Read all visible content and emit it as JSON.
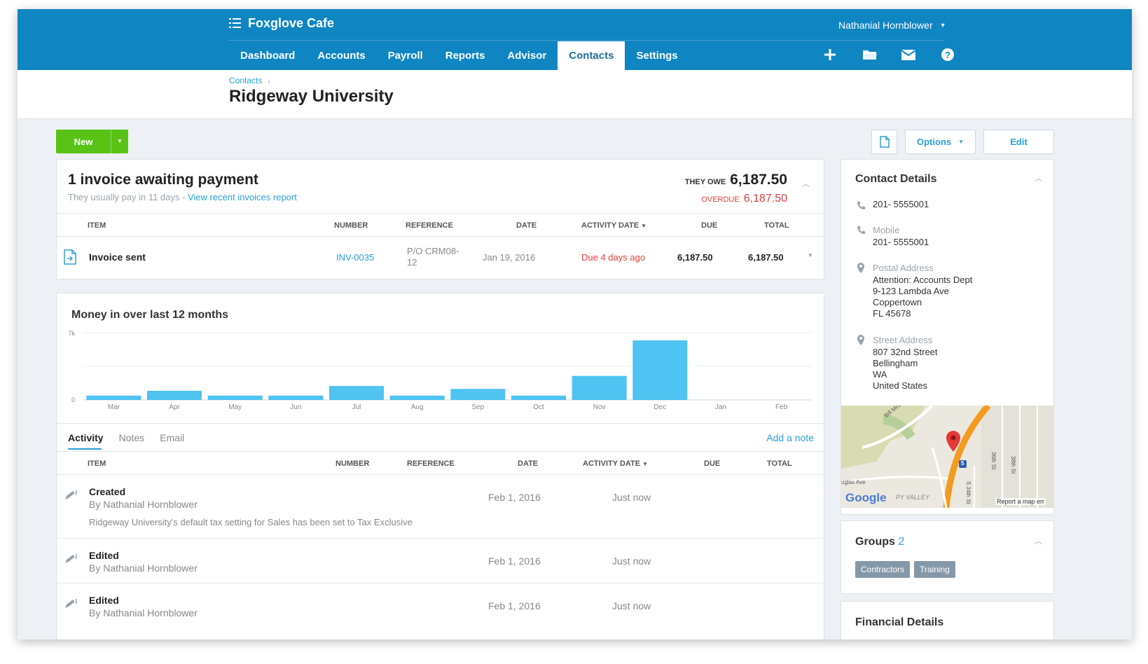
{
  "org_name": "Foxglove Cafe",
  "user_name": "Nathanial Hornblower",
  "nav": {
    "tabs": [
      "Dashboard",
      "Accounts",
      "Payroll",
      "Reports",
      "Advisor",
      "Contacts",
      "Settings"
    ],
    "active": "Contacts"
  },
  "icons": [
    "plus-icon",
    "folder-icon",
    "mail-icon",
    "help-icon"
  ],
  "breadcrumb": {
    "label": "Contacts",
    "separator": "›"
  },
  "page_title": "Ridgeway University",
  "toolbar": {
    "new_label": "New",
    "options_label": "Options",
    "edit_label": "Edit"
  },
  "invoice_panel": {
    "title": "1 invoice awaiting payment",
    "subtitle": "They usually pay in 11 days - ",
    "report_link": "View recent invoices report",
    "owe_label": "THEY OWE",
    "owe_value": "6,187.50",
    "overdue_label": "OVERDUE",
    "overdue_value": "6,187.50",
    "columns": [
      "ITEM",
      "NUMBER",
      "REFERENCE",
      "DATE",
      "ACTIVITY DATE",
      "DUE",
      "TOTAL"
    ],
    "row": {
      "item": "Invoice sent",
      "number": "INV-0035",
      "reference_line1": "P/O CRM08-",
      "reference_line2": "12",
      "date": "Jan 19, 2016",
      "activity_date": "Due 4 days ago",
      "due": "6,187.50",
      "total": "6,187.50"
    }
  },
  "chart_data": {
    "type": "bar",
    "title": "Money in over last 12 months",
    "categories": [
      "Mar",
      "Apr",
      "May",
      "Jun",
      "Jul",
      "Aug",
      "Sep",
      "Oct",
      "Nov",
      "Dec",
      "Jan",
      "Feb"
    ],
    "values": [
      450,
      950,
      450,
      450,
      1450,
      450,
      1150,
      450,
      2500,
      6200,
      0,
      0
    ],
    "y_ticks": [
      "7k",
      "0"
    ],
    "ylim": [
      0,
      7000
    ],
    "bar_color": "#4fc3f1",
    "grid": true
  },
  "activity": {
    "tabs": [
      "Activity",
      "Notes",
      "Email"
    ],
    "active_tab": "Activity",
    "add_note": "Add a note",
    "columns": [
      "ITEM",
      "NUMBER",
      "REFERENCE",
      "DATE",
      "ACTIVITY DATE",
      "DUE",
      "TOTAL"
    ],
    "rows": [
      {
        "name": "Created",
        "by": "By Nathanial Hornblower",
        "note": "Ridgeway University's default tax setting for Sales has been set to Tax Exclusive",
        "date": "Feb 1, 2016",
        "activity_date": "Just now"
      },
      {
        "name": "Edited",
        "by": "By Nathanial Hornblower",
        "note": "",
        "date": "Feb 1, 2016",
        "activity_date": "Just now"
      },
      {
        "name": "Edited",
        "by": "By Nathanial Hornblower",
        "note": "",
        "date": "Feb 1, 2016",
        "activity_date": "Just now"
      }
    ]
  },
  "contact_details": {
    "title": "Contact Details",
    "phone": "201- 5555001",
    "mobile_label": "Mobile",
    "mobile": "201- 5555001",
    "postal_label": "Postal Address",
    "postal_lines": [
      "Attention: Accounts Dept",
      "9-123 Lambda Ave",
      "Coppertown",
      "FL 45678"
    ],
    "street_label": "Street Address",
    "street_lines": [
      "807 32nd Street",
      "Bellingham",
      "WA",
      "United States"
    ]
  },
  "map": {
    "labels": [
      "Bill McDonald",
      "36th St",
      "38th St",
      "uglas Ave",
      "PY VALLEY",
      "S 34th St",
      "Report a map err"
    ],
    "google": "Google",
    "route_number": "5"
  },
  "groups": {
    "title": "Groups",
    "count": "2",
    "tags": [
      "Contractors",
      "Training"
    ]
  },
  "financial_details": {
    "title": "Financial Details"
  }
}
